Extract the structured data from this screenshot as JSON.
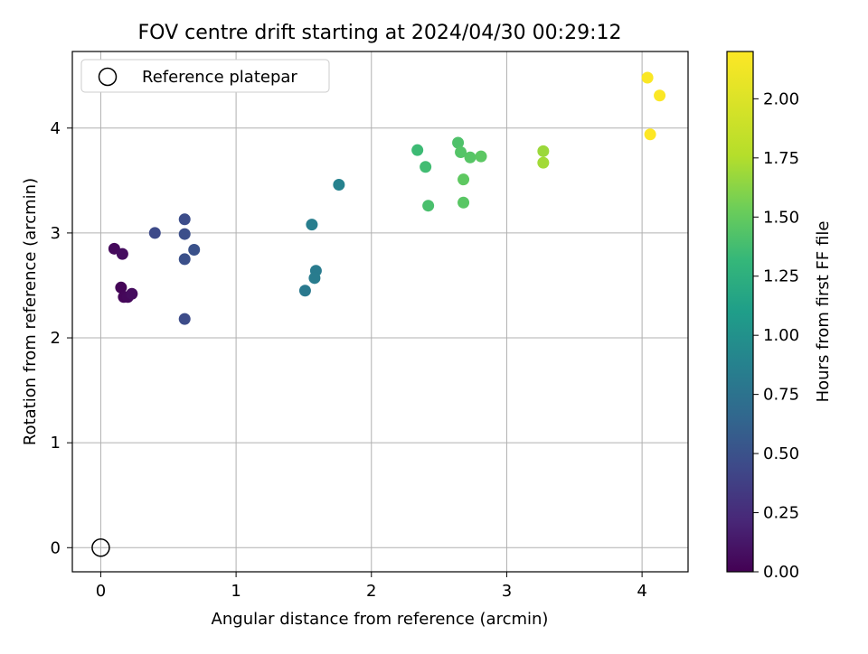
{
  "chart_data": {
    "type": "scatter",
    "title": "FOV centre drift starting at 2024/04/30 00:29:12",
    "xlabel": "Angular distance from reference (arcmin)",
    "ylabel": "Rotation from reference (arcmin)",
    "xlim": [
      -0.21,
      4.34
    ],
    "ylim": [
      -0.23,
      4.73
    ],
    "xticks": [
      0,
      1,
      2,
      3,
      4
    ],
    "yticks": [
      0,
      1,
      2,
      3,
      4
    ],
    "grid": true,
    "legend": {
      "position": "top-left",
      "entries": [
        "Reference platepar"
      ]
    },
    "reference_point": {
      "x": 0,
      "y": 0,
      "label": "Reference platepar"
    },
    "colorbar": {
      "label": "Hours from first FF file",
      "colormap": "viridis",
      "range": [
        0,
        2.2
      ],
      "ticks": [
        "0.00",
        "0.25",
        "0.50",
        "0.75",
        "1.00",
        "1.25",
        "1.50",
        "1.75",
        "2.00"
      ]
    },
    "points": [
      {
        "x": 0.1,
        "y": 2.85,
        "c": 0.05
      },
      {
        "x": 0.16,
        "y": 2.8,
        "c": 0.07
      },
      {
        "x": 0.15,
        "y": 2.48,
        "c": 0.02
      },
      {
        "x": 0.17,
        "y": 2.39,
        "c": 0.03
      },
      {
        "x": 0.2,
        "y": 2.39,
        "c": 0.04
      },
      {
        "x": 0.23,
        "y": 2.42,
        "c": 0.06
      },
      {
        "x": 0.4,
        "y": 3.0,
        "c": 0.45
      },
      {
        "x": 0.62,
        "y": 3.13,
        "c": 0.47
      },
      {
        "x": 0.62,
        "y": 2.99,
        "c": 0.48
      },
      {
        "x": 0.62,
        "y": 2.75,
        "c": 0.49
      },
      {
        "x": 0.69,
        "y": 2.84,
        "c": 0.5
      },
      {
        "x": 0.62,
        "y": 2.18,
        "c": 0.46
      },
      {
        "x": 1.51,
        "y": 2.45,
        "c": 0.8
      },
      {
        "x": 1.59,
        "y": 2.64,
        "c": 0.82
      },
      {
        "x": 1.58,
        "y": 2.57,
        "c": 0.83
      },
      {
        "x": 1.56,
        "y": 3.08,
        "c": 0.85
      },
      {
        "x": 1.76,
        "y": 3.46,
        "c": 0.88
      },
      {
        "x": 2.34,
        "y": 3.79,
        "c": 1.35
      },
      {
        "x": 2.4,
        "y": 3.63,
        "c": 1.37
      },
      {
        "x": 2.42,
        "y": 3.26,
        "c": 1.4
      },
      {
        "x": 2.64,
        "y": 3.86,
        "c": 1.42
      },
      {
        "x": 2.66,
        "y": 3.77,
        "c": 1.44
      },
      {
        "x": 2.73,
        "y": 3.72,
        "c": 1.45
      },
      {
        "x": 2.81,
        "y": 3.73,
        "c": 1.47
      },
      {
        "x": 2.68,
        "y": 3.51,
        "c": 1.48
      },
      {
        "x": 2.68,
        "y": 3.29,
        "c": 1.46
      },
      {
        "x": 3.27,
        "y": 3.78,
        "c": 1.68
      },
      {
        "x": 3.27,
        "y": 3.67,
        "c": 1.7
      },
      {
        "x": 4.04,
        "y": 4.48,
        "c": 2.18
      },
      {
        "x": 4.13,
        "y": 4.31,
        "c": 2.19
      },
      {
        "x": 4.06,
        "y": 3.94,
        "c": 2.2
      }
    ]
  }
}
